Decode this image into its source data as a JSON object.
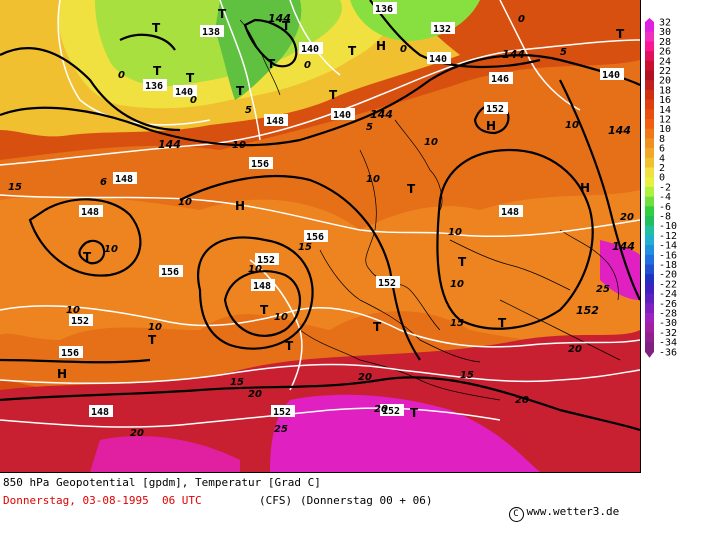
{
  "footer": {
    "title": "850 hPa Geopotential [gpdm], Temperatur [Grad C]",
    "date": "Donnerstag, 03-08-1995  06 UTC",
    "model": "(CFS)",
    "run": "(Donnerstag 00 + 06)",
    "copyright_symbol": "C",
    "website": "www.wetter3.de"
  },
  "legend": {
    "values": [
      "32",
      "30",
      "28",
      "26",
      "24",
      "22",
      "20",
      "18",
      "16",
      "14",
      "12",
      "10",
      "8",
      "6",
      "4",
      "2",
      "0",
      "-2",
      "-4",
      "-6",
      "-8",
      "-10",
      "-12",
      "-14",
      "-16",
      "-18",
      "-20",
      "-22",
      "-24",
      "-26",
      "-28",
      "-30",
      "-32",
      "-34",
      "-36"
    ],
    "colors": [
      "#e020e0",
      "#f030c0",
      "#ff1493",
      "#e0105a",
      "#c8102e",
      "#b01020",
      "#c02020",
      "#d03010",
      "#e04010",
      "#e85010",
      "#f06010",
      "#f07818",
      "#f09020",
      "#f0a828",
      "#f0c030",
      "#f0e040",
      "#e8f040",
      "#b0f040",
      "#70e040",
      "#30d040",
      "#20c060",
      "#20c0a0",
      "#20b0d0",
      "#2090e0",
      "#2070e0",
      "#2050d0",
      "#2030c0",
      "#4020c0",
      "#6020c0",
      "#8020c0",
      "#a020c0",
      "#a020a0",
      "#902090",
      "#802080"
    ]
  },
  "map": {
    "colors": {
      "cold_band": "#88e040",
      "cool_band": "#f0e040",
      "warm_band": "#f09020",
      "base": "#d85010",
      "hot_band": "#c02020",
      "very_hot": "#e020a0",
      "green_cold": "#60c040"
    },
    "geopotential_labels": [
      "136",
      "132",
      "138",
      "140",
      "140",
      "140",
      "136",
      "140",
      "140",
      "146",
      "152",
      "144",
      "148",
      "148",
      "156",
      "156",
      "148",
      "148",
      "148",
      "152",
      "148",
      "152",
      "156",
      "152",
      "152",
      "156",
      "156",
      "152",
      "152",
      "144",
      "144",
      "144",
      "144",
      "144"
    ],
    "temperature_labels": [
      "0",
      "0",
      "0",
      "0",
      "0",
      "0",
      "5",
      "5",
      "5",
      "5",
      "6",
      "6",
      "10",
      "10",
      "10",
      "10",
      "10",
      "10",
      "10",
      "10",
      "10",
      "10",
      "10",
      "10",
      "10",
      "10",
      "15",
      "15",
      "15",
      "15",
      "15",
      "15",
      "20",
      "20",
      "20",
      "20",
      "20",
      "20",
      "25",
      "25",
      "20",
      "25"
    ],
    "pressure_symbols": [
      "T",
      "T",
      "T",
      "T",
      "T",
      "T",
      "T",
      "T",
      "T",
      "T",
      "T",
      "T",
      "T",
      "T",
      "T",
      "T",
      "T",
      "T",
      "T",
      "H",
      "H",
      "H",
      "H",
      "H"
    ]
  }
}
